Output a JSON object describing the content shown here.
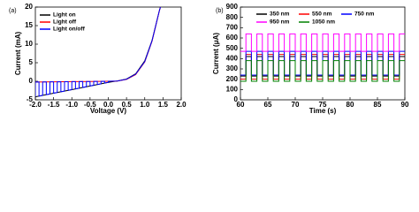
{
  "chart_data": [
    {
      "type": "line",
      "panel_label": "(a)",
      "xlabel": "Voltage (V)",
      "ylabel": "Current (mA)",
      "xlim": [
        -2,
        2
      ],
      "ylim": [
        -5,
        20
      ],
      "xticks": [
        {
          "value": -2,
          "label": "-2.0"
        },
        -1.5,
        {
          "value": -1,
          "label": "-1.0"
        },
        -0.5,
        {
          "value": 0,
          "label": "0.0"
        },
        0.5,
        {
          "value": 1,
          "label": "1.0"
        },
        1.5,
        {
          "value": 2,
          "label": "2.0"
        }
      ],
      "yticks": [
        -5,
        0,
        5,
        10,
        15,
        20
      ],
      "legend": "upper left",
      "series": [
        {
          "name": "Light on",
          "color": "#000000",
          "x": [
            -2,
            -1.5,
            -1,
            -0.5,
            0,
            0.25,
            0.5,
            0.75,
            1,
            1.2,
            1.4,
            1.43
          ],
          "values": [
            -4.2,
            -3.22,
            -2.25,
            -1.27,
            -0.3,
            0.1,
            0.6,
            2,
            5.5,
            11,
            19,
            20
          ]
        },
        {
          "name": "Light off",
          "color": "#ff0000",
          "x": [
            -2,
            -1.5,
            -1,
            -0.5,
            0,
            0.25,
            0.5,
            0.75,
            1,
            1.2,
            1.4,
            1.43
          ],
          "values": [
            -0.2,
            -0.15,
            -0.1,
            -0.05,
            0,
            0.05,
            0.5,
            1.8,
            5.2,
            10.8,
            19,
            20
          ]
        },
        {
          "name": "Light on/off",
          "color": "#0000ff",
          "x": [
            -2,
            -2,
            -1.9,
            -1.9,
            -1.8,
            -1.8,
            -1.7,
            -1.7,
            -1.6,
            -1.6,
            -1.5,
            -1.5,
            -1.4,
            -1.4,
            -1.3,
            -1.3,
            -1.2,
            -1.2,
            -1.1,
            -1.1,
            -1,
            -1,
            -0.9,
            -0.9,
            -0.8,
            -0.8,
            -0.7,
            -0.7,
            -0.6,
            -0.6,
            -0.5,
            -0.5,
            -0.4,
            -0.4,
            -0.3,
            -0.3,
            -0.2,
            -0.2,
            -0.1,
            -0.1,
            0,
            0,
            0.25,
            0.5,
            0.75,
            1,
            1.2,
            1.4,
            1.43
          ],
          "values": [
            -4.2,
            -0.2,
            -0.19,
            -4.0,
            -3.81,
            -0.18,
            -0.17,
            -3.61,
            -3.42,
            -0.16,
            -0.15,
            -3.22,
            -3.03,
            -0.14,
            -0.13,
            -2.83,
            -2.64,
            -0.12,
            -0.11,
            -2.44,
            -2.25,
            -0.1,
            -0.09,
            -2.05,
            -1.86,
            -0.08,
            -0.07,
            -1.66,
            -1.47,
            -0.06,
            -0.05,
            -1.27,
            -1.08,
            -0.04,
            -0.03,
            -0.88,
            -0.69,
            -0.02,
            -0.01,
            -0.49,
            -0.3,
            0,
            0.05,
            0.55,
            1.9,
            5.3,
            10.9,
            19,
            20
          ]
        }
      ]
    },
    {
      "type": "line",
      "panel_label": "(b)",
      "xlabel": "Time (s)",
      "ylabel": "Current (μA)",
      "xlim": [
        60,
        90
      ],
      "ylim": [
        0,
        900
      ],
      "xticks": [
        60,
        65,
        70,
        75,
        80,
        85,
        90
      ],
      "yticks": [
        0,
        100,
        200,
        300,
        400,
        500,
        600,
        700,
        800,
        900
      ],
      "legend": "upper center",
      "x": [
        60,
        61,
        61,
        62,
        62,
        63,
        63,
        64,
        64,
        65,
        65,
        66,
        66,
        67,
        67,
        68,
        68,
        69,
        69,
        70,
        70,
        71,
        71,
        72,
        72,
        73,
        73,
        74,
        74,
        75,
        75,
        76,
        76,
        77,
        77,
        78,
        78,
        79,
        79,
        80,
        80,
        81,
        81,
        82,
        82,
        83,
        83,
        84,
        84,
        85,
        85,
        86,
        86,
        87,
        87,
        88,
        88,
        89,
        89,
        90
      ],
      "series": [
        {
          "name": "350 nm",
          "color": "#000000",
          "values": [
            230,
            230,
            420,
            420,
            230,
            230,
            420,
            420,
            230,
            230,
            420,
            420,
            230,
            230,
            420,
            420,
            230,
            230,
            420,
            420,
            230,
            230,
            420,
            420,
            230,
            230,
            420,
            420,
            230,
            230,
            420,
            420,
            230,
            230,
            420,
            420,
            230,
            230,
            420,
            420,
            230,
            230,
            420,
            420,
            230,
            230,
            420,
            420,
            230,
            230,
            420,
            420,
            230,
            230,
            420,
            420,
            230,
            230,
            420,
            420
          ]
        },
        {
          "name": "550 nm",
          "color": "#ff0000",
          "values": [
            200,
            200,
            440,
            440,
            200,
            200,
            440,
            440,
            200,
            200,
            440,
            440,
            200,
            200,
            440,
            440,
            200,
            200,
            440,
            440,
            200,
            200,
            440,
            440,
            200,
            200,
            440,
            440,
            200,
            200,
            440,
            440,
            200,
            200,
            440,
            440,
            200,
            200,
            440,
            440,
            200,
            200,
            440,
            440,
            200,
            200,
            440,
            440,
            200,
            200,
            440,
            440,
            200,
            200,
            440,
            440,
            200,
            200,
            440,
            440
          ]
        },
        {
          "name": "750 nm",
          "color": "#0000ff",
          "values": [
            240,
            240,
            470,
            470,
            240,
            240,
            470,
            470,
            240,
            240,
            470,
            470,
            240,
            240,
            470,
            470,
            240,
            240,
            470,
            470,
            240,
            240,
            470,
            470,
            240,
            240,
            470,
            470,
            240,
            240,
            470,
            470,
            240,
            240,
            470,
            470,
            240,
            240,
            470,
            470,
            240,
            240,
            470,
            470,
            240,
            240,
            470,
            470,
            240,
            240,
            470,
            470,
            240,
            240,
            470,
            470,
            240,
            240,
            470,
            470
          ]
        },
        {
          "name": "950 nm",
          "color": "#ff00ff",
          "values": [
            470,
            470,
            640,
            640,
            470,
            470,
            640,
            640,
            470,
            470,
            640,
            640,
            470,
            470,
            640,
            640,
            470,
            470,
            640,
            640,
            470,
            470,
            640,
            640,
            470,
            470,
            640,
            640,
            470,
            470,
            640,
            640,
            470,
            470,
            640,
            640,
            470,
            470,
            640,
            640,
            470,
            470,
            640,
            640,
            470,
            470,
            640,
            640,
            470,
            470,
            640,
            640,
            470,
            470,
            640,
            640,
            470,
            470,
            640,
            640
          ]
        },
        {
          "name": "1050 nm",
          "color": "#008000",
          "values": [
            180,
            180,
            380,
            380,
            180,
            180,
            380,
            380,
            180,
            180,
            380,
            380,
            180,
            180,
            380,
            380,
            180,
            180,
            380,
            380,
            180,
            180,
            380,
            380,
            180,
            180,
            380,
            380,
            180,
            180,
            380,
            380,
            180,
            180,
            380,
            380,
            180,
            180,
            380,
            380,
            180,
            180,
            380,
            380,
            180,
            180,
            380,
            380,
            180,
            180,
            380,
            380,
            180,
            180,
            380,
            380,
            180,
            180,
            380,
            380
          ]
        }
      ]
    }
  ]
}
